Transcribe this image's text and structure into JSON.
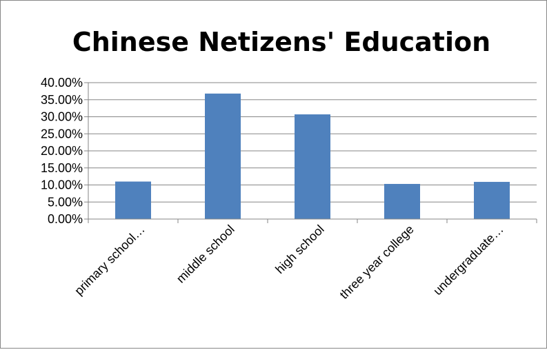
{
  "chart_data": {
    "type": "bar",
    "title": "Chinese Netizens' Education",
    "categories": [
      "primary school…",
      "middle school",
      "high school",
      "three year college",
      "undergraduate…"
    ],
    "values": [
      11.0,
      36.8,
      30.7,
      10.3,
      10.9
    ],
    "ylim": [
      0,
      40
    ],
    "yticks": [
      0,
      5,
      10,
      15,
      20,
      25,
      30,
      35,
      40
    ],
    "ytick_labels": [
      "0.00%",
      "5.00%",
      "10.00%",
      "15.00%",
      "20.00%",
      "25.00%",
      "30.00%",
      "35.00%",
      "40.00%"
    ],
    "xlabel": "",
    "ylabel": "",
    "grid": true,
    "legend": "none",
    "colors": {
      "bar": "#4f81bd",
      "grid": "#868686",
      "axis": "#868686",
      "frame": "#868686"
    }
  }
}
